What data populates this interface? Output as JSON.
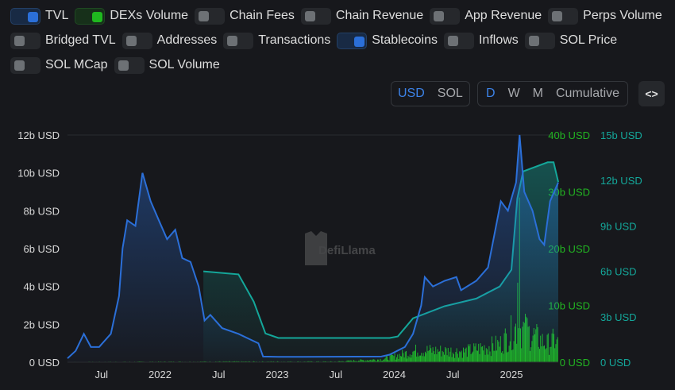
{
  "toggles": [
    {
      "label": "TVL",
      "on": true,
      "color": "#2b6fd8"
    },
    {
      "label": "DEXs Volume",
      "on": true,
      "color": "#1fb81f"
    },
    {
      "label": "Chain Fees",
      "on": false
    },
    {
      "label": "Chain Revenue",
      "on": false
    },
    {
      "label": "App Revenue",
      "on": false
    },
    {
      "label": "Perps Volume",
      "on": false
    },
    {
      "label": "Bridged TVL",
      "on": false
    },
    {
      "label": "Addresses",
      "on": false
    },
    {
      "label": "Transactions",
      "on": false
    },
    {
      "label": "Stablecoins",
      "on": true,
      "color": "#2b6fd8"
    },
    {
      "label": "Inflows",
      "on": false
    },
    {
      "label": "SOL Price",
      "on": false
    },
    {
      "label": "SOL MCap",
      "on": false
    },
    {
      "label": "SOL Volume",
      "on": false
    }
  ],
  "denomination": {
    "options": [
      "USD",
      "SOL"
    ],
    "active": "USD"
  },
  "period": {
    "options": [
      "D",
      "W",
      "M",
      "Cumulative"
    ],
    "active": "D"
  },
  "embed_label": "<>",
  "watermark": "DefiLlama",
  "chart_data": {
    "type": "line",
    "xlim": [
      2021.21,
      2025.4
    ],
    "x_ticks": [
      {
        "v": 2021.5,
        "l": "Jul"
      },
      {
        "v": 2022.0,
        "l": "2022"
      },
      {
        "v": 2022.5,
        "l": "Jul"
      },
      {
        "v": 2023.0,
        "l": "2023"
      },
      {
        "v": 2023.5,
        "l": "Jul"
      },
      {
        "v": 2024.0,
        "l": "2024"
      },
      {
        "v": 2024.5,
        "l": "Jul"
      },
      {
        "v": 2025.0,
        "l": "2025"
      }
    ],
    "axes": [
      {
        "name": "TVL",
        "ylim": [
          0,
          12
        ],
        "ticks": [
          "0 USD",
          "2b USD",
          "4b USD",
          "6b USD",
          "8b USD",
          "10b USD",
          "12b USD"
        ],
        "color": "#d8d8d8"
      },
      {
        "name": "DEXs Volume",
        "ylim": [
          0,
          40
        ],
        "ticks": [
          "0 USD",
          "10b USD",
          "20b USD",
          "30b USD",
          "40b USD"
        ],
        "color": "#22b422"
      },
      {
        "name": "Stablecoins",
        "ylim": [
          0,
          15
        ],
        "ticks": [
          "0 USD",
          "3b USD",
          "6b USD",
          "9b USD",
          "12b USD",
          "15b USD"
        ],
        "color": "#14a79a"
      }
    ],
    "series": [
      {
        "name": "TVL",
        "axis": 0,
        "color": "#2b6fd8",
        "points": [
          [
            2021.21,
            0.2
          ],
          [
            2021.28,
            0.6
          ],
          [
            2021.35,
            1.5
          ],
          [
            2021.41,
            0.8
          ],
          [
            2021.48,
            0.8
          ],
          [
            2021.58,
            1.5
          ],
          [
            2021.65,
            3.5
          ],
          [
            2021.68,
            6
          ],
          [
            2021.72,
            7.5
          ],
          [
            2021.79,
            7.2
          ],
          [
            2021.85,
            10
          ],
          [
            2021.92,
            8.5
          ],
          [
            2021.99,
            7.5
          ],
          [
            2022.06,
            6.5
          ],
          [
            2022.13,
            7
          ],
          [
            2022.19,
            5.5
          ],
          [
            2022.26,
            5.3
          ],
          [
            2022.33,
            4
          ],
          [
            2022.38,
            2.2
          ],
          [
            2022.43,
            2.5
          ],
          [
            2022.53,
            1.8
          ],
          [
            2022.67,
            1.5
          ],
          [
            2022.77,
            1.2
          ],
          [
            2022.84,
            1
          ],
          [
            2022.88,
            0.3
          ],
          [
            2023.01,
            0.28
          ],
          [
            2023.89,
            0.3
          ],
          [
            2023.96,
            0.4
          ],
          [
            2024.09,
            0.8
          ],
          [
            2024.16,
            1.5
          ],
          [
            2024.23,
            3
          ],
          [
            2024.26,
            4.5
          ],
          [
            2024.33,
            4
          ],
          [
            2024.43,
            4.3
          ],
          [
            2024.53,
            4.5
          ],
          [
            2024.57,
            3.8
          ],
          [
            2024.7,
            4.3
          ],
          [
            2024.8,
            5
          ],
          [
            2024.91,
            8.5
          ],
          [
            2024.97,
            8
          ],
          [
            2025.04,
            9.5
          ],
          [
            2025.07,
            12
          ],
          [
            2025.11,
            9
          ],
          [
            2025.18,
            8
          ],
          [
            2025.24,
            6.5
          ],
          [
            2025.28,
            6.2
          ],
          [
            2025.33,
            8.5
          ],
          [
            2025.4,
            9.5
          ]
        ]
      },
      {
        "name": "Stablecoins",
        "axis": 2,
        "color": "#14a79a",
        "points": [
          [
            2022.37,
            6
          ],
          [
            2022.67,
            5.8
          ],
          [
            2022.8,
            4
          ],
          [
            2022.9,
            1.9
          ],
          [
            2023.01,
            1.6
          ],
          [
            2023.96,
            1.6
          ],
          [
            2024.03,
            1.7
          ],
          [
            2024.16,
            2.9
          ],
          [
            2024.43,
            3.7
          ],
          [
            2024.7,
            4.2
          ],
          [
            2024.9,
            5
          ],
          [
            2025.0,
            6.1
          ],
          [
            2025.05,
            10.8
          ],
          [
            2025.1,
            12.6
          ],
          [
            2025.31,
            13.2
          ],
          [
            2025.36,
            13.2
          ],
          [
            2025.4,
            11.9
          ]
        ]
      },
      {
        "name": "DEXs Volume",
        "axis": 1,
        "color": "#1fb81f",
        "type": "bar",
        "levels": [
          [
            2021.21,
            0.05
          ],
          [
            2022.5,
            0.1
          ],
          [
            2023.5,
            0.1
          ],
          [
            2023.9,
            0.5
          ],
          [
            2024.2,
            2
          ],
          [
            2024.6,
            1.8
          ],
          [
            2024.9,
            3
          ],
          [
            2025.05,
            6
          ],
          [
            2025.3,
            3
          ],
          [
            2025.4,
            4
          ]
        ],
        "spikes": [
          [
            2024.2,
            5
          ],
          [
            2025.05,
            14
          ],
          [
            2025.07,
            29
          ],
          [
            2025.12,
            8
          ],
          [
            2025.38,
            4
          ]
        ]
      }
    ]
  }
}
